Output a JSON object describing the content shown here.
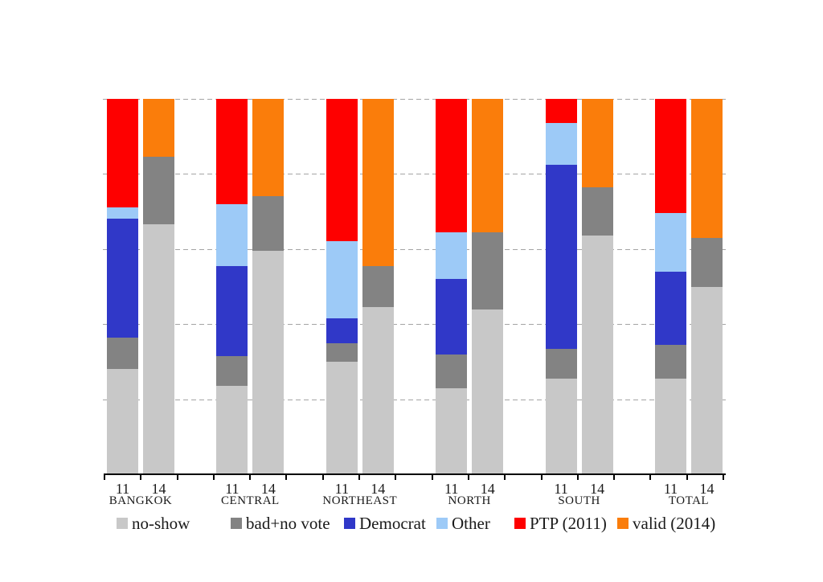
{
  "chart_data": {
    "type": "bar",
    "subtype": "stacked-100-percent-column",
    "title": "",
    "xlabel": "",
    "ylabel": "",
    "unit": "percent",
    "ylim": [
      0,
      100
    ],
    "gridlines_percent": [
      20,
      40,
      60,
      80,
      100
    ],
    "grid_style": "dashed",
    "legend_position": "bottom",
    "groups": [
      "BANGKOK",
      "CENTRAL",
      "NORTHEAST",
      "NORTH",
      "SOUTH",
      "TOTAL"
    ],
    "bar_labels": [
      "11",
      "14"
    ],
    "stack_order": "bottom-to-top follows series array order",
    "series": [
      {
        "name": "no-show",
        "color": "#C8C8C8",
        "values_11": [
          28,
          23.5,
          30,
          23,
          25.5,
          25.5
        ],
        "values_14": [
          66.5,
          59.5,
          44.5,
          44,
          63.5,
          50
        ]
      },
      {
        "name": "bad+no vote",
        "color": "#838383",
        "values_11": [
          8.5,
          8,
          5,
          9,
          8,
          9
        ],
        "values_14": [
          18,
          14.5,
          11,
          20.5,
          13,
          13
        ]
      },
      {
        "name": "Democrat",
        "color": "#3038C8",
        "values_11": [
          31.5,
          24,
          6.5,
          20,
          49,
          19.5
        ],
        "values_14": [
          0,
          0,
          0,
          0,
          0,
          0
        ]
      },
      {
        "name": "Other",
        "color": "#9DCAF7",
        "values_11": [
          3,
          16.5,
          20.5,
          12.5,
          11,
          15.5
        ],
        "values_14": [
          0,
          0,
          0,
          0,
          0,
          0
        ]
      },
      {
        "name": "PTP (2011)",
        "color": "#FE0000",
        "values_11": [
          29,
          28,
          38,
          35.5,
          6.5,
          30.5
        ],
        "values_14": [
          0,
          0,
          0,
          0,
          0,
          0
        ]
      },
      {
        "name": "valid (2014)",
        "color": "#FA7D0B",
        "values_11": [
          0,
          0,
          0,
          0,
          0,
          0
        ],
        "values_14": [
          15.5,
          26,
          44.5,
          35.5,
          23.5,
          37
        ]
      }
    ]
  },
  "colors": {
    "background": "#FFFFFF",
    "axis": "#000000",
    "gridline": "#A4A4A4",
    "text": "#1A1A1A"
  }
}
